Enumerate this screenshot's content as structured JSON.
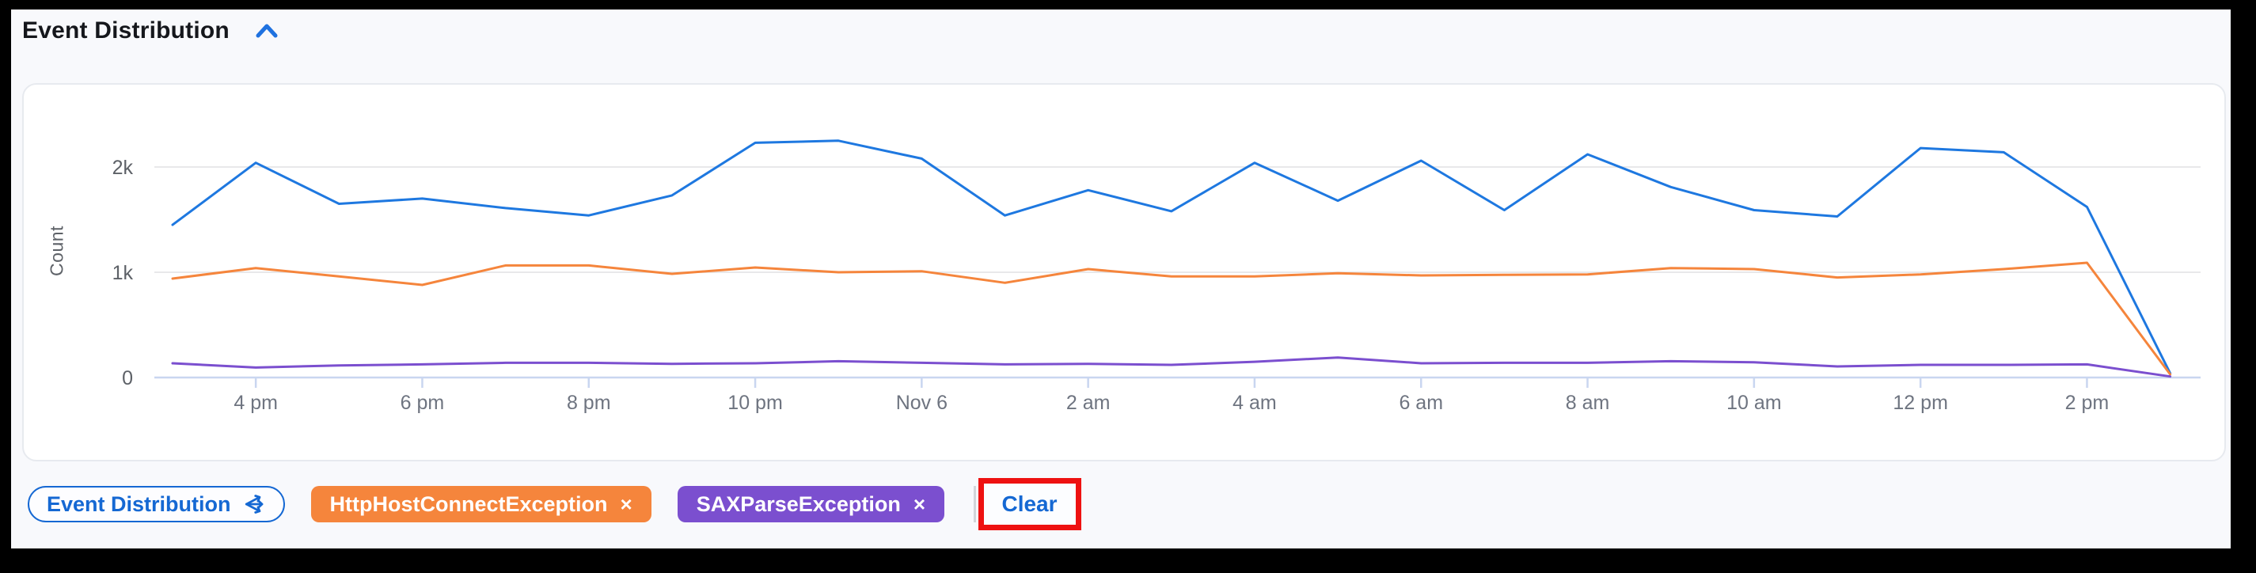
{
  "header": {
    "title": "Event Distribution",
    "collapse_state": "expanded"
  },
  "chart_data": {
    "type": "line",
    "title": "Event Distribution",
    "ylabel": "Count",
    "xlabel": "",
    "legend": "none",
    "grid": "horizontal",
    "ylim": [
      0,
      2600
    ],
    "y_ticks": [
      {
        "value": 0,
        "label": "0"
      },
      {
        "value": 1000,
        "label": "1k"
      },
      {
        "value": 2000,
        "label": "2k"
      }
    ],
    "categories": [
      "3 pm",
      "4 pm",
      "5 pm",
      "6 pm",
      "7 pm",
      "8 pm",
      "9 pm",
      "10 pm",
      "11 pm",
      "Nov 6",
      "1 am",
      "2 am",
      "3 am",
      "4 am",
      "5 am",
      "6 am",
      "7 am",
      "8 am",
      "9 am",
      "10 am",
      "11 am",
      "12 pm",
      "1 pm",
      "2 pm",
      "3 pm"
    ],
    "x_tick_indices": [
      1,
      3,
      5,
      7,
      9,
      11,
      13,
      15,
      17,
      19,
      21,
      23
    ],
    "x_tick_labels": [
      "4 pm",
      "6 pm",
      "8 pm",
      "10 pm",
      "Nov 6",
      "2 am",
      "4 am",
      "6 am",
      "8 am",
      "10 am",
      "12 pm",
      "2 pm"
    ],
    "series": [
      {
        "name": "Event Distribution",
        "color": "#1e78e0",
        "values": [
          1450,
          2040,
          1650,
          1700,
          1610,
          1540,
          1730,
          2230,
          2250,
          2080,
          1540,
          1780,
          1580,
          2040,
          1680,
          2060,
          1590,
          2120,
          1810,
          1590,
          1530,
          2180,
          2140,
          1620,
          40
        ]
      },
      {
        "name": "HttpHostConnectException",
        "color": "#f5853c",
        "values": [
          940,
          1040,
          960,
          880,
          1065,
          1065,
          985,
          1045,
          1000,
          1010,
          900,
          1030,
          960,
          960,
          990,
          970,
          975,
          980,
          1040,
          1030,
          950,
          980,
          1030,
          1090,
          30
        ]
      },
      {
        "name": "SAXParseException",
        "color": "#7b4fcf",
        "values": [
          135,
          95,
          115,
          125,
          140,
          140,
          130,
          135,
          155,
          140,
          125,
          130,
          120,
          150,
          190,
          135,
          140,
          140,
          155,
          145,
          105,
          120,
          120,
          125,
          10
        ]
      }
    ]
  },
  "filters": {
    "share_chip": {
      "label": "Event Distribution",
      "icon": "share-icon"
    },
    "chips": [
      {
        "label": "HttpHostConnectException",
        "remove": "×",
        "color": "#f5853c"
      },
      {
        "label": "SAXParseException",
        "remove": "×",
        "color": "#7b4fcf"
      }
    ],
    "clear_label": "Clear"
  },
  "colors": {
    "accent_blue": "#1568d3",
    "annotation_red": "#ee1111",
    "series_blue": "#1e78e0",
    "series_orange": "#f5853c",
    "series_purple": "#7b4fcf"
  }
}
